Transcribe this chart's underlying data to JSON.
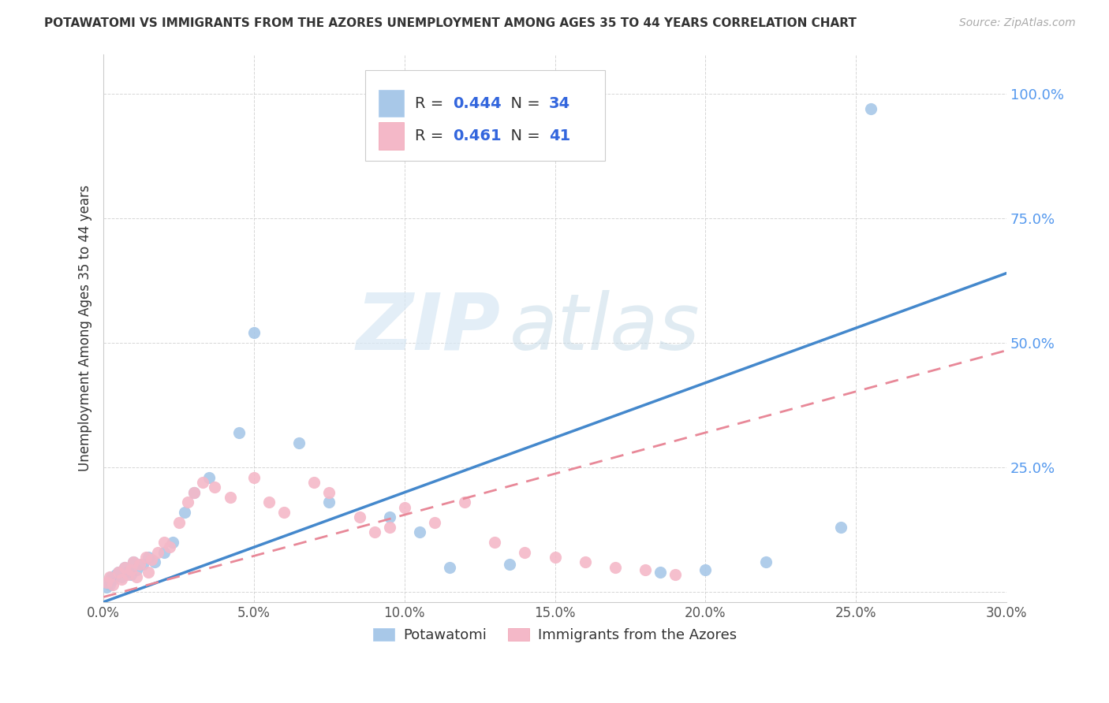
{
  "title": "POTAWATOMI VS IMMIGRANTS FROM THE AZORES UNEMPLOYMENT AMONG AGES 35 TO 44 YEARS CORRELATION CHART",
  "source": "Source: ZipAtlas.com",
  "ylabel": "Unemployment Among Ages 35 to 44 years",
  "xlim": [
    0.0,
    30.0
  ],
  "ylim": [
    -2.0,
    108.0
  ],
  "ytick_vals": [
    0,
    25.0,
    50.0,
    75.0,
    100.0
  ],
  "xtick_vals": [
    0.0,
    5.0,
    10.0,
    15.0,
    20.0,
    25.0,
    30.0
  ],
  "legend_blue_r": "0.444",
  "legend_blue_n": "34",
  "legend_pink_r": "0.461",
  "legend_pink_n": "41",
  "blue_scatter_color": "#a8c8e8",
  "pink_scatter_color": "#f4b8c8",
  "blue_line_color": "#4488cc",
  "pink_line_color": "#e88898",
  "watermark_zip": "ZIP",
  "watermark_atlas": "atlas",
  "blue_line_intercept": -2.0,
  "blue_line_slope": 2.2,
  "pink_line_intercept": -1.0,
  "pink_line_slope": 1.65,
  "potawatomi_x": [
    0.1,
    0.15,
    0.2,
    0.25,
    0.3,
    0.4,
    0.5,
    0.6,
    0.7,
    0.8,
    0.9,
    1.0,
    1.1,
    1.3,
    1.5,
    1.7,
    2.0,
    2.3,
    2.7,
    3.0,
    3.5,
    4.5,
    5.0,
    6.5,
    7.5,
    9.5,
    10.5,
    11.5,
    13.5,
    18.5,
    20.0,
    22.0,
    24.5,
    25.5
  ],
  "potawatomi_y": [
    1.0,
    2.0,
    1.5,
    3.0,
    2.5,
    3.5,
    4.0,
    3.0,
    5.0,
    4.0,
    3.5,
    6.0,
    4.5,
    5.5,
    7.0,
    6.0,
    8.0,
    10.0,
    16.0,
    20.0,
    23.0,
    32.0,
    52.0,
    30.0,
    18.0,
    15.0,
    12.0,
    5.0,
    5.5,
    4.0,
    4.5,
    6.0,
    13.0,
    97.0
  ],
  "azores_x": [
    0.1,
    0.2,
    0.3,
    0.5,
    0.6,
    0.7,
    0.8,
    0.9,
    1.0,
    1.1,
    1.2,
    1.4,
    1.5,
    1.6,
    1.8,
    2.0,
    2.2,
    2.5,
    2.8,
    3.0,
    3.3,
    3.7,
    4.2,
    5.0,
    5.5,
    6.0,
    7.0,
    7.5,
    8.5,
    9.0,
    9.5,
    10.0,
    11.0,
    12.0,
    13.0,
    14.0,
    15.0,
    16.0,
    17.0,
    18.0,
    19.0
  ],
  "azores_y": [
    2.0,
    3.0,
    1.5,
    4.0,
    2.5,
    5.0,
    3.5,
    4.5,
    6.0,
    3.0,
    5.5,
    7.0,
    4.0,
    6.5,
    8.0,
    10.0,
    9.0,
    14.0,
    18.0,
    20.0,
    22.0,
    21.0,
    19.0,
    23.0,
    18.0,
    16.0,
    22.0,
    20.0,
    15.0,
    12.0,
    13.0,
    17.0,
    14.0,
    18.0,
    10.0,
    8.0,
    7.0,
    6.0,
    5.0,
    4.5,
    3.5
  ]
}
